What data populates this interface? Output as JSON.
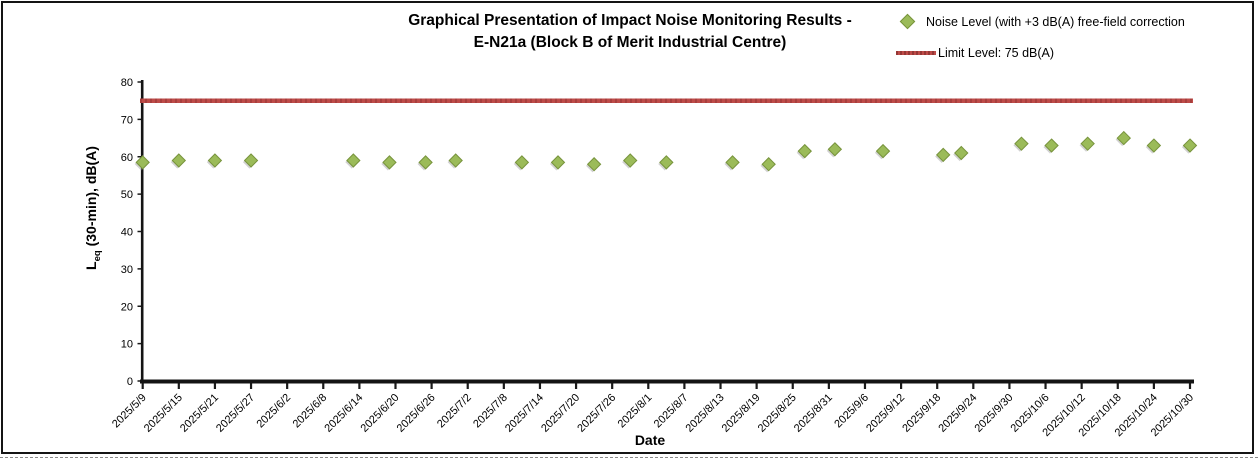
{
  "title": {
    "line1": "Graphical Presentation of Impact Noise Monitoring Results -",
    "line2": "E-N21a (Block B of Merit Industrial Centre)"
  },
  "legend": {
    "items": [
      {
        "label": "Noise Level (with +3 dB(A) free-field correction",
        "marker": "diamond",
        "color": "#9BBB59"
      },
      {
        "label": "Limit Level: 75 dB(A)",
        "marker": "line",
        "color": "#BE4B48"
      }
    ]
  },
  "axes": {
    "xlabel": "Date",
    "ylabel_prefix": "L",
    "ylabel_sub": "eq",
    "ylabel_rest": " (30-min), dB(A)"
  },
  "chart_data": {
    "type": "scatter",
    "title": "Graphical Presentation of Impact Noise Monitoring Results - E-N21a (Block B of Merit Industrial Centre)",
    "xlabel": "Date",
    "ylabel": "Leq (30-min), dB(A)",
    "ylim": [
      0,
      80
    ],
    "y_ticks": [
      0,
      10,
      20,
      30,
      40,
      50,
      60,
      70,
      80
    ],
    "x_tick_interval_days": 6,
    "x_range_days": [
      0,
      174
    ],
    "x_tick_labels": [
      "2025/5/9",
      "2025/5/15",
      "2025/5/21",
      "2025/5/27",
      "2025/6/2",
      "2025/6/8",
      "2025/6/14",
      "2025/6/20",
      "2025/6/26",
      "2025/7/2",
      "2025/7/8",
      "2025/7/14",
      "2025/7/20",
      "2025/7/26",
      "2025/8/1",
      "2025/8/7",
      "2025/8/13",
      "2025/8/19",
      "2025/8/25",
      "2025/8/31",
      "2025/9/6",
      "2025/9/12",
      "2025/9/18",
      "2025/9/24",
      "2025/9/30",
      "2025/10/6",
      "2025/10/12",
      "2025/10/18",
      "2025/10/24",
      "2025/10/30"
    ],
    "series": [
      {
        "name": "Noise Level (with +3 dB(A) free-field correction",
        "marker": "diamond",
        "color": "#9BBB59",
        "edge_color": "#77933C",
        "points": [
          {
            "date": "2025/5/9",
            "day": 0,
            "value": 58.5
          },
          {
            "date": "2025/5/15",
            "day": 6,
            "value": 59
          },
          {
            "date": "2025/5/21",
            "day": 12,
            "value": 59
          },
          {
            "date": "2025/5/27",
            "day": 18,
            "value": 59
          },
          {
            "date": "2025/6/13",
            "day": 35,
            "value": 59
          },
          {
            "date": "2025/6/19",
            "day": 41,
            "value": 58.5
          },
          {
            "date": "2025/6/25",
            "day": 47,
            "value": 58.5
          },
          {
            "date": "2025/6/30",
            "day": 52,
            "value": 59
          },
          {
            "date": "2025/7/11",
            "day": 63,
            "value": 58.5
          },
          {
            "date": "2025/7/17",
            "day": 69,
            "value": 58.5
          },
          {
            "date": "2025/7/23",
            "day": 75,
            "value": 58
          },
          {
            "date": "2025/7/29",
            "day": 81,
            "value": 59
          },
          {
            "date": "2025/8/4",
            "day": 87,
            "value": 58.5
          },
          {
            "date": "2025/8/15",
            "day": 98,
            "value": 58.5
          },
          {
            "date": "2025/8/21",
            "day": 104,
            "value": 58
          },
          {
            "date": "2025/8/27",
            "day": 110,
            "value": 61.5
          },
          {
            "date": "2025/9/1",
            "day": 115,
            "value": 62
          },
          {
            "date": "2025/9/9",
            "day": 123,
            "value": 61.5
          },
          {
            "date": "2025/9/19",
            "day": 133,
            "value": 60.5
          },
          {
            "date": "2025/9/22",
            "day": 136,
            "value": 61
          },
          {
            "date": "2025/10/2",
            "day": 146,
            "value": 63.5
          },
          {
            "date": "2025/10/7",
            "day": 151,
            "value": 63
          },
          {
            "date": "2025/10/13",
            "day": 157,
            "value": 63.5
          },
          {
            "date": "2025/10/19",
            "day": 163,
            "value": 65
          },
          {
            "date": "2025/10/24",
            "day": 168,
            "value": 63
          },
          {
            "date": "2025/10/30",
            "day": 174,
            "value": 63
          }
        ]
      }
    ],
    "limit_line": {
      "label": "Limit Level: 75 dB(A)",
      "value": 75,
      "color": "#BE4B48",
      "dark_color": "#953735"
    },
    "legend_position": "top-right",
    "grid": false
  }
}
